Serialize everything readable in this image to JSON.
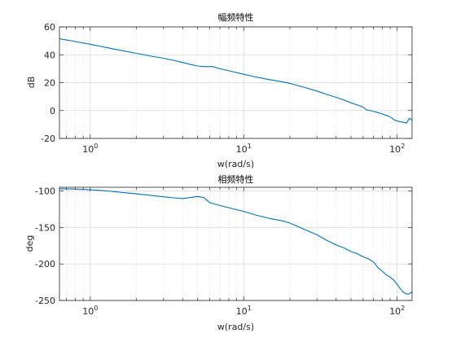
{
  "figure": {
    "background": "#ffffff",
    "line_color": "#0072BD",
    "axis_color": "#262626",
    "grid_color": "#d9d9d9"
  },
  "chart_data": [
    {
      "type": "line",
      "title": "幅频特性",
      "xlabel": "w(rad/s)",
      "ylabel": "dB",
      "xscale": "log",
      "xlim": [
        0.63,
        125
      ],
      "ylim": [
        -20,
        60
      ],
      "yticks": [
        -20,
        0,
        20,
        40,
        60
      ],
      "ytick_labels": [
        "-20",
        "0",
        "20",
        "40",
        "60"
      ],
      "xtick_labels": [
        {
          "base": "10",
          "exp": "0"
        },
        {
          "base": "10",
          "exp": "1"
        },
        {
          "base": "10",
          "exp": "2"
        }
      ],
      "grid": true,
      "series": [
        {
          "x": [
            0.63,
            0.8,
            1.0,
            1.3,
            1.6,
            2.0,
            2.5,
            3.0,
            3.5,
            4.0,
            4.5,
            5.0,
            5.5,
            6.0,
            6.3,
            7.0,
            8.0,
            10,
            12,
            15,
            18,
            20,
            25,
            30,
            35,
            40,
            45,
            50,
            55,
            60,
            63,
            70,
            75,
            80,
            85,
            90,
            95,
            100,
            105,
            110,
            115,
            120,
            125
          ],
          "y": [
            51.5,
            49.5,
            47.5,
            45,
            43,
            41,
            39,
            37.5,
            36,
            34.5,
            33,
            32,
            31.5,
            31.5,
            31.5,
            30,
            28.5,
            26,
            24,
            22,
            20.5,
            19.5,
            16.5,
            14,
            11.5,
            9.5,
            7.5,
            5.5,
            4,
            2.5,
            0.5,
            -0.5,
            -1.5,
            -2.5,
            -3.5,
            -4.5,
            -6.5,
            -7.5,
            -8,
            -8.5,
            -9,
            -5.5,
            -7
          ]
        }
      ]
    },
    {
      "type": "line",
      "title": "相频特性",
      "xlabel": "w(rad/s)",
      "ylabel": "deg",
      "xscale": "log",
      "xlim": [
        0.63,
        125
      ],
      "ylim": [
        -250,
        -95
      ],
      "yticks": [
        -250,
        -200,
        -150,
        -100
      ],
      "ytick_labels": [
        "-250",
        "-200",
        "-150",
        "-100"
      ],
      "xtick_labels": [
        {
          "base": "10",
          "exp": "0"
        },
        {
          "base": "10",
          "exp": "1"
        },
        {
          "base": "10",
          "exp": "2"
        }
      ],
      "grid": true,
      "series": [
        {
          "x": [
            0.63,
            0.8,
            1.0,
            1.3,
            1.6,
            2.0,
            2.5,
            3.0,
            3.5,
            4.0,
            4.5,
            5.0,
            5.5,
            6.0,
            6.5,
            7.0,
            8.0,
            10,
            12,
            15,
            18,
            20,
            25,
            30,
            35,
            40,
            45,
            50,
            55,
            60,
            65,
            70,
            75,
            80,
            85,
            90,
            95,
            100,
            105,
            110,
            115,
            120,
            125
          ],
          "y": [
            -97,
            -97.5,
            -98.5,
            -100,
            -102,
            -104,
            -106,
            -108,
            -109.5,
            -110.5,
            -109,
            -107.5,
            -109,
            -116,
            -118,
            -120,
            -123,
            -128,
            -133,
            -138,
            -141,
            -144,
            -153,
            -160,
            -168,
            -174,
            -178,
            -183,
            -186,
            -190,
            -193,
            -197,
            -205,
            -210,
            -215,
            -218,
            -222,
            -228,
            -234,
            -239,
            -241,
            -241,
            -238
          ]
        }
      ]
    }
  ]
}
